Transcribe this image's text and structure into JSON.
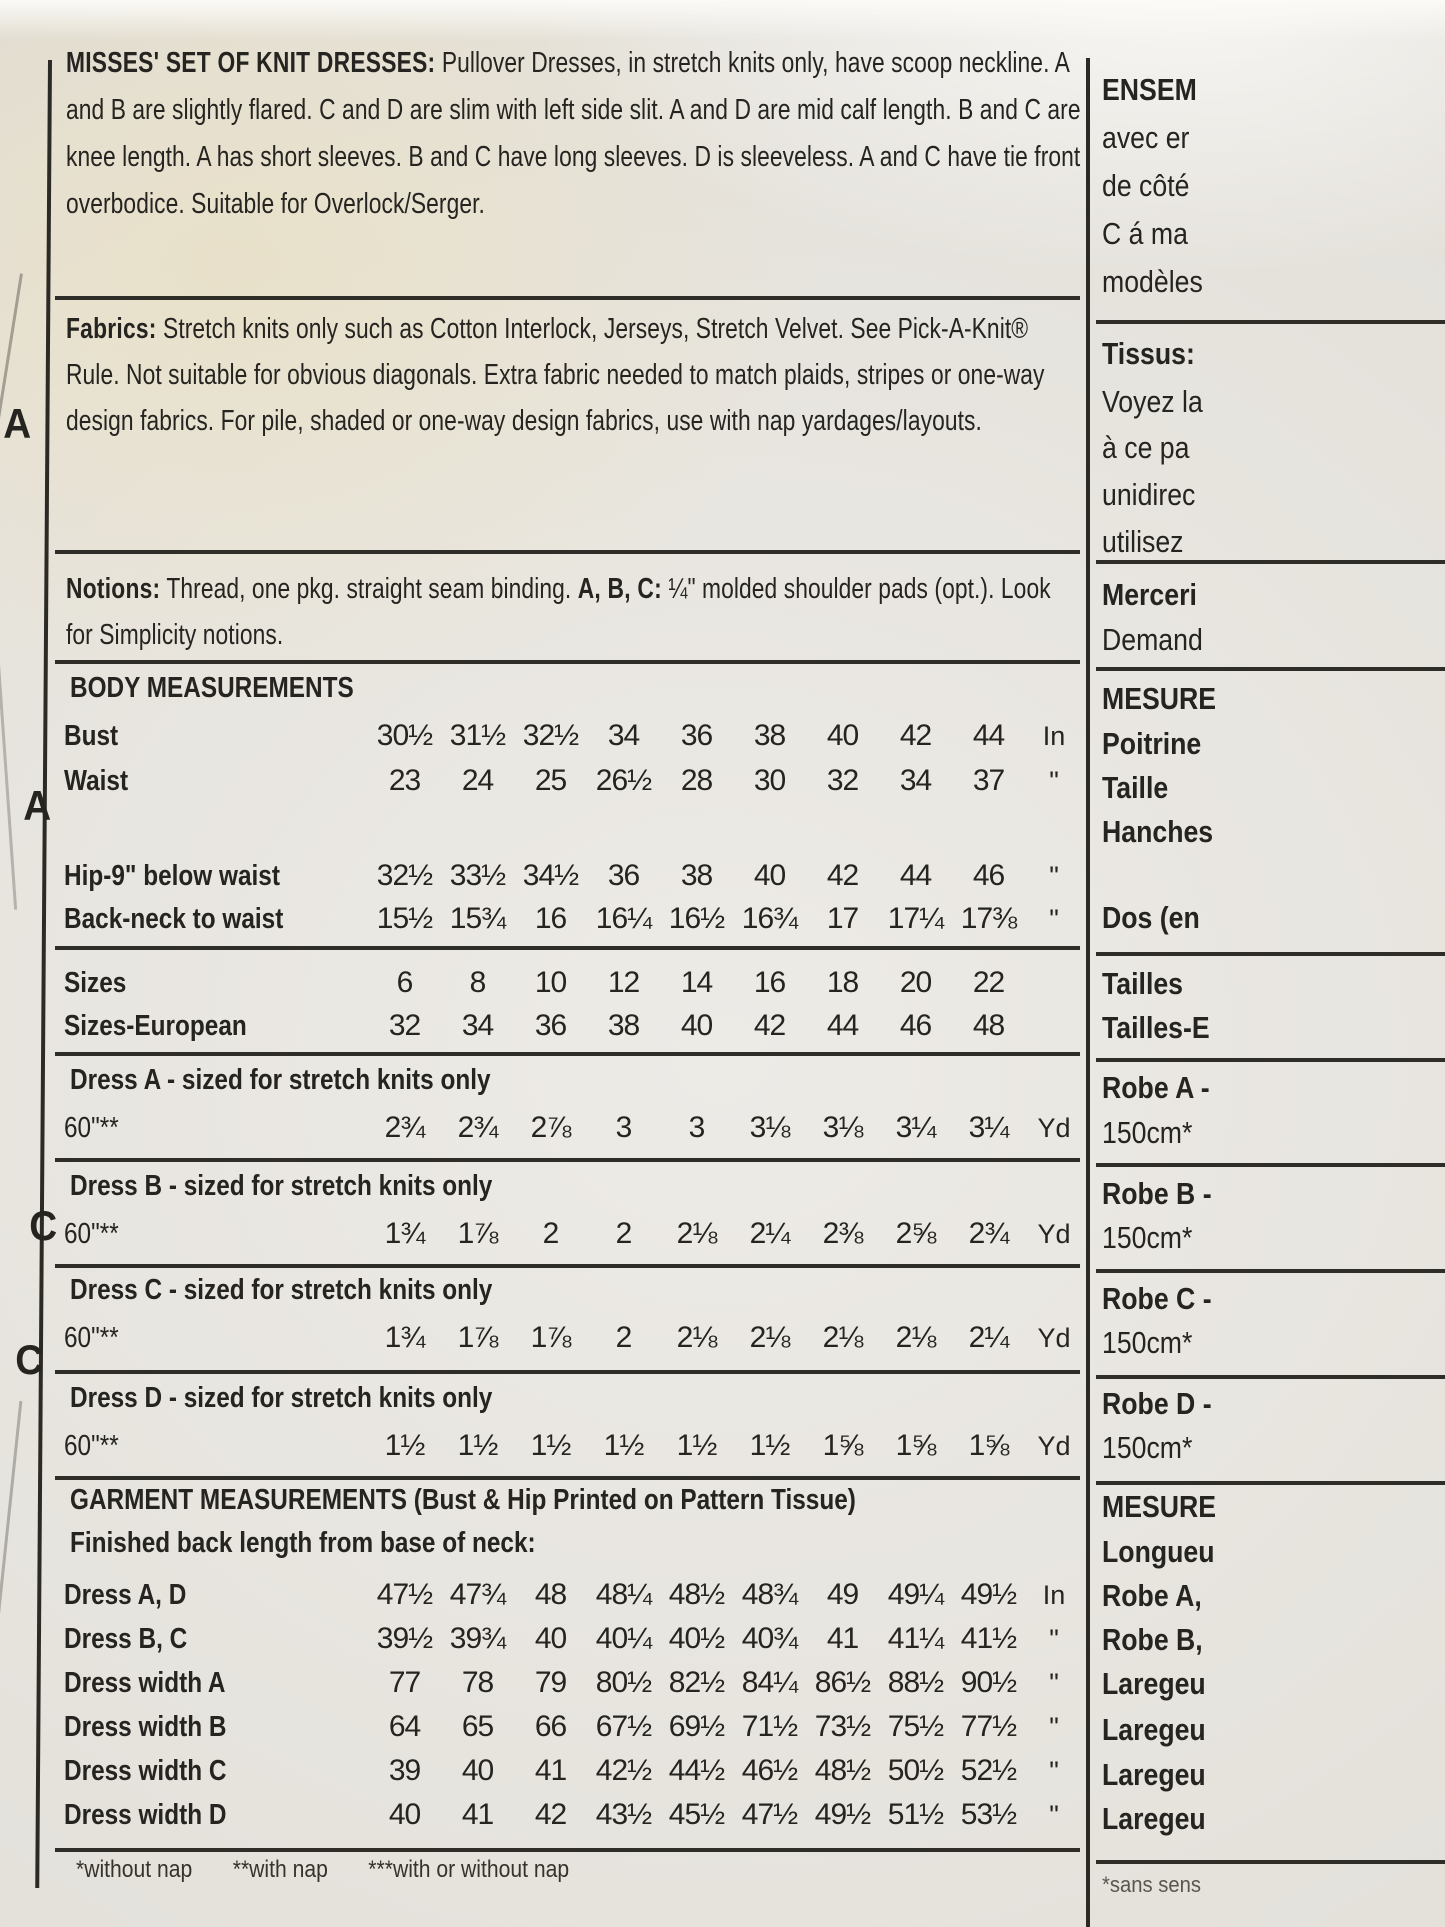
{
  "page": {
    "description": {
      "lead": "MISSES' SET OF KNIT DRESSES:",
      "body": " Pullover Dresses, in stretch knits only, have scoop neckline. A and B are slightly flared. C and D are slim with left side slit. A and D are mid calf length. B and C are knee length. A has short sleeves. B and C have long sleeves. D is sleeveless. A and C have tie front overbodice. Suitable for Overlock/Serger."
    },
    "fabrics": {
      "lead": "Fabrics:",
      "body": " Stretch knits only such as Cotton Interlock, Jerseys, Stretch Velvet. See Pick-A-Knit® Rule. Not suitable for obvious diagonals. Extra fabric needed to match plaids, stripes or one-way design fabrics. For pile, shaded or one-way design fabrics, use with nap yardages/layouts."
    },
    "notions": {
      "lead": "Notions:",
      "body_1": " Thread, one pkg. straight seam binding. ",
      "abc": "A, B, C:",
      "body_2": " ¼\" molded shoulder pads (opt.). Look for Simplicity notions."
    }
  },
  "margin_labels": [
    "A",
    "A",
    "C",
    "C"
  ],
  "size_chart": {
    "sections": [
      {
        "heading": "BODY MEASUREMENTS",
        "rows": [
          {
            "label": "Bust",
            "values": [
              "30½",
              "31½",
              "32½",
              "34",
              "36",
              "38",
              "40",
              "42",
              "44"
            ],
            "unit": "In"
          },
          {
            "label": "Waist",
            "values": [
              "23",
              "24",
              "25",
              "26½",
              "28",
              "30",
              "32",
              "34",
              "37"
            ],
            "unit": "\""
          },
          {
            "label": "Hip-9\" below waist",
            "values": [
              "32½",
              "33½",
              "34½",
              "36",
              "38",
              "40",
              "42",
              "44",
              "46"
            ],
            "unit": "\""
          },
          {
            "label": "Back-neck to waist",
            "values": [
              "15½",
              "15¾",
              "16",
              "16¼",
              "16½",
              "16¾",
              "17",
              "17¼",
              "17⅜"
            ],
            "unit": "\""
          }
        ]
      },
      {
        "heading": "",
        "rows": [
          {
            "label": "Sizes",
            "values": [
              "6",
              "8",
              "10",
              "12",
              "14",
              "16",
              "18",
              "20",
              "22"
            ],
            "unit": ""
          },
          {
            "label": "Sizes-European",
            "values": [
              "32",
              "34",
              "36",
              "38",
              "40",
              "42",
              "44",
              "46",
              "48"
            ],
            "unit": ""
          }
        ]
      },
      {
        "heading": "Dress A - sized for stretch knits only",
        "rows": [
          {
            "label": "60\"**",
            "label_bold": false,
            "values": [
              "2¾",
              "2¾",
              "2⅞",
              "3",
              "3",
              "3⅛",
              "3⅛",
              "3¼",
              "3¼"
            ],
            "unit": "Yd"
          }
        ]
      },
      {
        "heading": "Dress B - sized for stretch knits only",
        "rows": [
          {
            "label": "60\"**",
            "label_bold": false,
            "values": [
              "1¾",
              "1⅞",
              "2",
              "2",
              "2⅛",
              "2¼",
              "2⅜",
              "2⅝",
              "2¾"
            ],
            "unit": "Yd"
          }
        ]
      },
      {
        "heading": "Dress C - sized for stretch knits only",
        "rows": [
          {
            "label": "60\"**",
            "label_bold": false,
            "values": [
              "1¾",
              "1⅞",
              "1⅞",
              "2",
              "2⅛",
              "2⅛",
              "2⅛",
              "2⅛",
              "2¼"
            ],
            "unit": "Yd"
          }
        ]
      },
      {
        "heading": "Dress D - sized for stretch knits only",
        "rows": [
          {
            "label": "60\"**",
            "label_bold": false,
            "values": [
              "1½",
              "1½",
              "1½",
              "1½",
              "1½",
              "1½",
              "1⅝",
              "1⅝",
              "1⅝"
            ],
            "unit": "Yd"
          }
        ]
      },
      {
        "heading": "GARMENT MEASUREMENTS (Bust & Hip Printed on Pattern Tissue)",
        "subheading": "Finished back length from base of neck:",
        "rows": [
          {
            "label": "Dress A, D",
            "values": [
              "47½",
              "47¾",
              "48",
              "48¼",
              "48½",
              "48¾",
              "49",
              "49¼",
              "49½"
            ],
            "unit": "In"
          },
          {
            "label": "Dress B, C",
            "values": [
              "39½",
              "39¾",
              "40",
              "40¼",
              "40½",
              "40¾",
              "41",
              "41¼",
              "41½"
            ],
            "unit": "\""
          },
          {
            "label": "Dress width A",
            "values": [
              "77",
              "78",
              "79",
              "80½",
              "82½",
              "84¼",
              "86½",
              "88½",
              "90½"
            ],
            "unit": "\""
          },
          {
            "label": "Dress width B",
            "values": [
              "64",
              "65",
              "66",
              "67½",
              "69½",
              "71½",
              "73½",
              "75½",
              "77½"
            ],
            "unit": "\""
          },
          {
            "label": "Dress width C",
            "values": [
              "39",
              "40",
              "41",
              "42½",
              "44½",
              "46½",
              "48½",
              "50½",
              "52½"
            ],
            "unit": "\""
          },
          {
            "label": "Dress width D",
            "values": [
              "40",
              "41",
              "42",
              "43½",
              "45½",
              "47½",
              "49½",
              "51½",
              "53½"
            ],
            "unit": "\""
          }
        ]
      }
    ],
    "footnotes": [
      "*without nap",
      "**with nap",
      "***with or without nap"
    ]
  },
  "french_column": {
    "items": [
      "ENSEM",
      "avec er",
      "de côté",
      "C á ma",
      "modèles",
      "Tissus:",
      "Voyez la",
      "à ce pa",
      "unidirec",
      "utilisez",
      "Merceri",
      "Demand",
      "MESURE",
      "Poitrine",
      "Taille",
      "Hanches",
      "Dos (en",
      "Tailles",
      "Tailles-E",
      "Robe A -",
      "150cm*",
      "Robe B -",
      "150cm*",
      "Robe C -",
      "150cm*",
      "Robe D -",
      "150cm*",
      "MESURE",
      "Longueu",
      "Robe A,",
      "Robe B,",
      "Laregeu",
      "Laregeu",
      "Laregeu",
      "Laregeu",
      "*sans sens"
    ]
  },
  "colors": {
    "paper": "#e9e6e0",
    "ink": "#262420",
    "cream_tint": "#ece3c8"
  }
}
